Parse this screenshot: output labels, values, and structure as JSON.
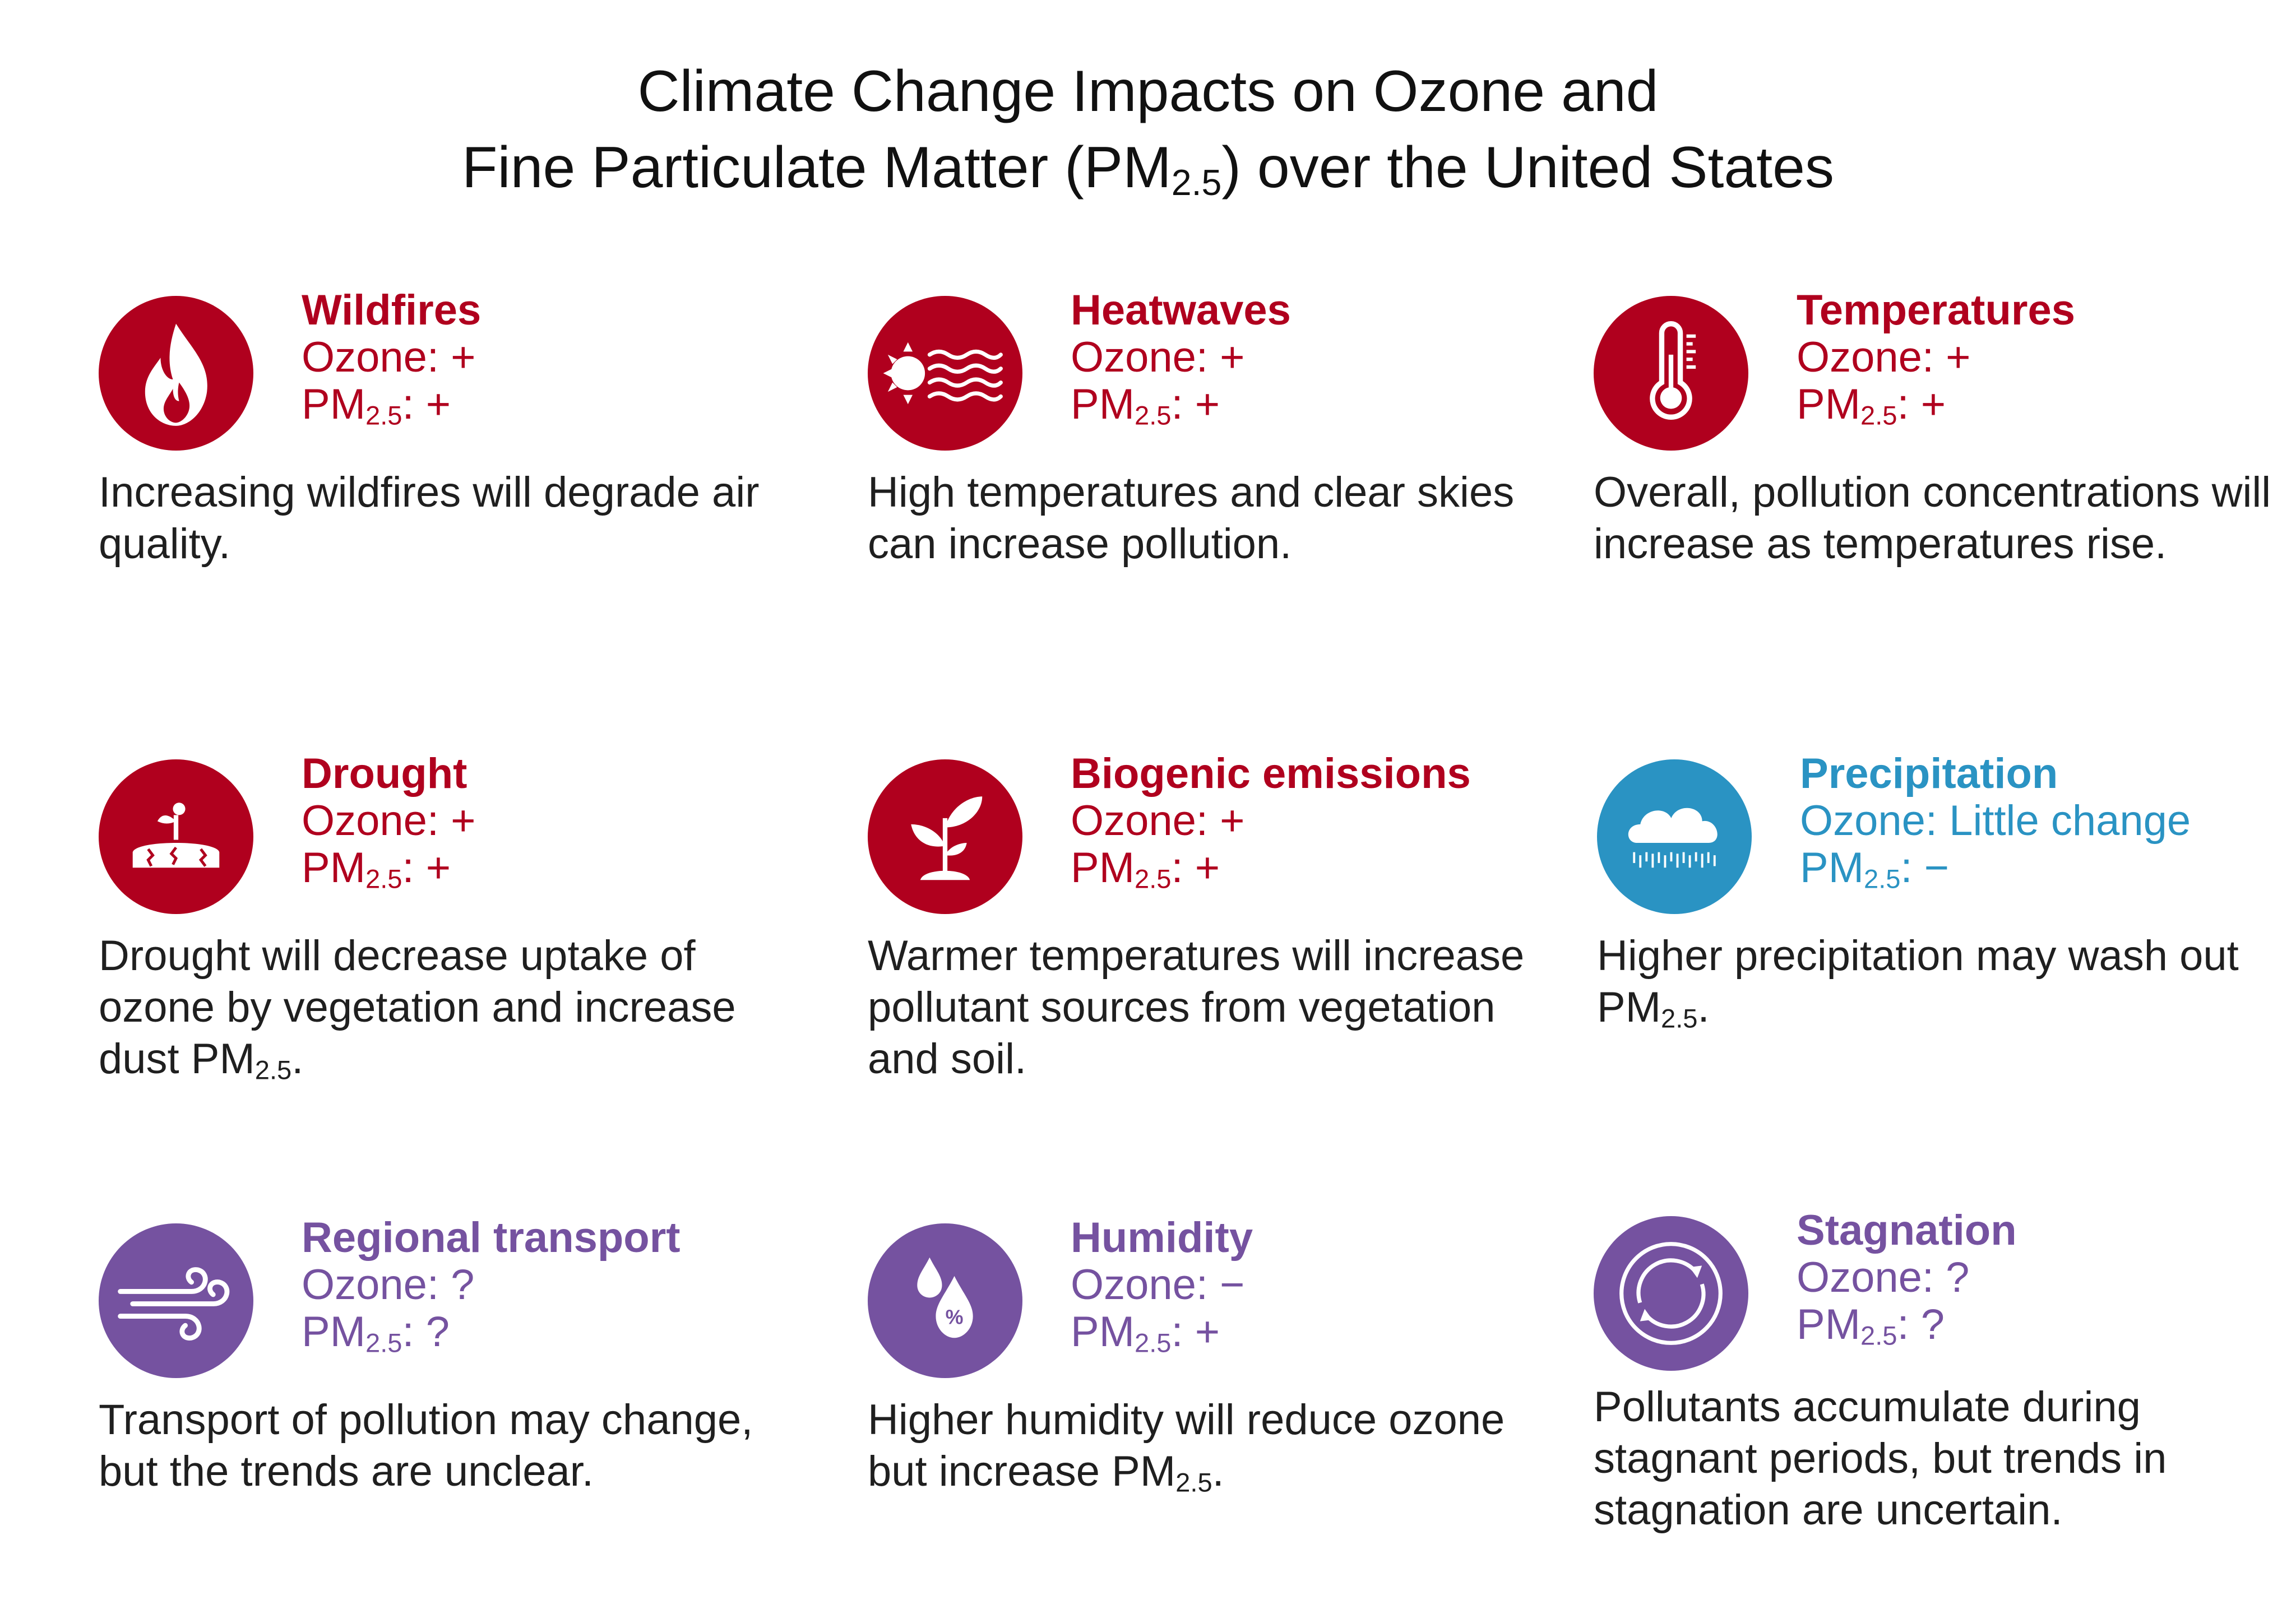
{
  "title": {
    "line1": "Climate Change Impacts on Ozone and",
    "line2_pre": "Fine Particulate Matter (PM",
    "line2_sub": "2.5",
    "line2_post": ") over the United States"
  },
  "colors": {
    "red": "#b0001e",
    "blue": "#2a93c3",
    "purple": "#7552a0"
  },
  "cards": [
    {
      "icon": "flame-icon",
      "color": "red",
      "name": "Wildfires",
      "ozone_label": "Ozone:",
      "ozone": "+",
      "pm_label": "PM",
      "pm_sub": "2.5",
      "pm_suffix": ":",
      "pm": "+",
      "desc": "Increasing wildfires will degrade air quality.",
      "desc_sub": "",
      "desc_end": ""
    },
    {
      "icon": "heatwave-icon",
      "color": "red",
      "name": "Heatwaves",
      "ozone_label": "Ozone:",
      "ozone": "+",
      "pm_label": "PM",
      "pm_sub": "2.5",
      "pm_suffix": ":",
      "pm": "+",
      "desc": "High temperatures and clear skies can increase pollution.",
      "desc_sub": "",
      "desc_end": ""
    },
    {
      "icon": "thermometer-icon",
      "color": "red",
      "name": "Temperatures",
      "ozone_label": "Ozone:",
      "ozone": "+",
      "pm_label": "PM",
      "pm_sub": "2.5",
      "pm_suffix": ":",
      "pm": "+",
      "desc": "Overall, pollution concentrations will increase as temperatures rise.",
      "desc_sub": "",
      "desc_end": ""
    },
    {
      "icon": "drought-icon",
      "color": "red",
      "name": "Drought",
      "ozone_label": "Ozone:",
      "ozone": "+",
      "pm_label": "PM",
      "pm_sub": "2.5",
      "pm_suffix": ":",
      "pm": "+",
      "desc": "Drought will decrease uptake of ozone by vegetation and increase dust PM",
      "desc_sub": "2.5",
      "desc_end": "."
    },
    {
      "icon": "plant-icon",
      "color": "red",
      "name": "Biogenic emissions",
      "ozone_label": "Ozone:",
      "ozone": "+",
      "pm_label": "PM",
      "pm_sub": "2.5",
      "pm_suffix": ":",
      "pm": "+",
      "desc": "Warmer temperatures will increase pollutant sources from vegetation and soil.",
      "desc_sub": "",
      "desc_end": ""
    },
    {
      "icon": "rain-cloud-icon",
      "color": "blue",
      "name": "Precipitation",
      "ozone_label": "Ozone:",
      "ozone": "Little change",
      "pm_label": "PM",
      "pm_sub": "2.5",
      "pm_suffix": ":",
      "pm": "−",
      "desc": "Higher precipitation may wash out PM",
      "desc_sub": "2.5",
      "desc_end": "."
    },
    {
      "icon": "wind-icon",
      "color": "purple",
      "name": "Regional transport",
      "ozone_label": "Ozone:",
      "ozone": "?",
      "pm_label": "PM",
      "pm_sub": "2.5",
      "pm_suffix": ":",
      "pm": "?",
      "desc": "Transport of pollution may change, but the trends are unclear.",
      "desc_sub": "",
      "desc_end": ""
    },
    {
      "icon": "humidity-drops-icon",
      "color": "purple",
      "name": "Humidity",
      "ozone_label": "Ozone:",
      "ozone": "−",
      "pm_label": "PM",
      "pm_sub": "2.5",
      "pm_suffix": ":",
      "pm": "+",
      "desc": "Higher humidity will reduce ozone but increase PM",
      "desc_sub": "2.5",
      "desc_end": "."
    },
    {
      "icon": "stagnation-cycle-icon",
      "color": "purple",
      "name": "Stagnation",
      "ozone_label": "Ozone:",
      "ozone": "?",
      "pm_label": "PM",
      "pm_sub": "2.5",
      "pm_suffix": ":",
      "pm": "?",
      "desc": "Pollutants accumulate during stagnant periods, but trends in stagnation are uncertain.",
      "desc_sub": "",
      "desc_end": ""
    }
  ]
}
